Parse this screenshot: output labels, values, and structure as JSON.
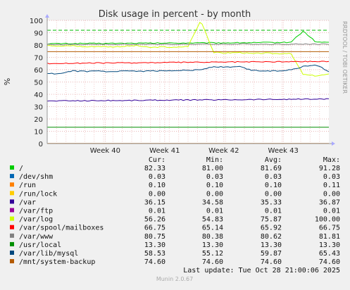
{
  "chart_data": {
    "type": "line",
    "title": "Disk usage in percent - by month",
    "ylabel": "%",
    "ylim": [
      0,
      100
    ],
    "yticks": [
      0,
      10,
      20,
      30,
      40,
      50,
      60,
      70,
      80,
      90,
      100
    ],
    "x_ticks": [
      "Week 40",
      "Week 41",
      "Week 42",
      "Week 43"
    ],
    "grid": true,
    "warning_line": 92,
    "side_label": "RRDTOOL / TOBI OETIKER",
    "legend_headers": [
      "Cur:",
      "Min:",
      "Avg:",
      "Max:"
    ],
    "series": [
      {
        "name": "/",
        "color": "#00cc00",
        "cur": "82.33",
        "min": "81.00",
        "avg": "81.69",
        "max": "91.28",
        "values": [
          81.0,
          81.2,
          81.2,
          81.3,
          81.3,
          81.4,
          81.4,
          81.5,
          81.5,
          81.6,
          81.6,
          81.7,
          81.7,
          81.8,
          81.8,
          81.9,
          81.9,
          82.0,
          82.1,
          82.2,
          91.28,
          82.3,
          82.33
        ]
      },
      {
        "name": "/dev/shm",
        "color": "#0066b3",
        "cur": "0.03",
        "min": "0.03",
        "avg": "0.03",
        "max": "0.03",
        "values": [
          0.03,
          0.03,
          0.03,
          0.03,
          0.03,
          0.03,
          0.03,
          0.03,
          0.03,
          0.03,
          0.03,
          0.03,
          0.03,
          0.03,
          0.03,
          0.03,
          0.03,
          0.03,
          0.03,
          0.03,
          0.03,
          0.03,
          0.03
        ]
      },
      {
        "name": "/run",
        "color": "#ff8000",
        "cur": "0.10",
        "min": "0.10",
        "avg": "0.10",
        "max": "0.11",
        "values": [
          0.1,
          0.1,
          0.1,
          0.1,
          0.1,
          0.1,
          0.1,
          0.1,
          0.1,
          0.1,
          0.1,
          0.1,
          0.1,
          0.1,
          0.1,
          0.1,
          0.1,
          0.1,
          0.1,
          0.1,
          0.1,
          0.1,
          0.1
        ]
      },
      {
        "name": "/run/lock",
        "color": "#ffcc00",
        "cur": "0.00",
        "min": "0.00",
        "avg": "0.00",
        "max": "0.00",
        "values": [
          0,
          0,
          0,
          0,
          0,
          0,
          0,
          0,
          0,
          0,
          0,
          0,
          0,
          0,
          0,
          0,
          0,
          0,
          0,
          0,
          0,
          0,
          0
        ]
      },
      {
        "name": "/var",
        "color": "#330099",
        "cur": "36.15",
        "min": "34.58",
        "avg": "35.33",
        "max": "36.87",
        "values": [
          34.6,
          34.7,
          34.8,
          34.8,
          34.9,
          35.0,
          35.0,
          35.1,
          35.2,
          35.3,
          35.3,
          35.4,
          35.5,
          35.5,
          35.6,
          35.7,
          35.8,
          35.9,
          35.9,
          36.0,
          36.1,
          36.1,
          36.15
        ]
      },
      {
        "name": "/var/ftp",
        "color": "#990099",
        "cur": "0.01",
        "min": "0.01",
        "avg": "0.01",
        "max": "0.01",
        "values": [
          0.01,
          0.01,
          0.01,
          0.01,
          0.01,
          0.01,
          0.01,
          0.01,
          0.01,
          0.01,
          0.01,
          0.01,
          0.01,
          0.01,
          0.01,
          0.01,
          0.01,
          0.01,
          0.01,
          0.01,
          0.01,
          0.01,
          0.01
        ]
      },
      {
        "name": "/var/log",
        "color": "#ccff00",
        "cur": "56.26",
        "min": "54.83",
        "avg": "75.87",
        "max": "100.00",
        "values": [
          80,
          79,
          79.5,
          78.5,
          79,
          78.5,
          79,
          79.5,
          78,
          78.5,
          78,
          79,
          100,
          74,
          73.5,
          74,
          73,
          73.5,
          73,
          73.5,
          56,
          55,
          56.26
        ]
      },
      {
        "name": "/var/spool/mailboxes",
        "color": "#ff0000",
        "cur": "66.75",
        "min": "65.14",
        "avg": "65.92",
        "max": "66.75",
        "values": [
          65.1,
          65.1,
          65.2,
          65.3,
          65.4,
          65.5,
          65.5,
          65.6,
          65.7,
          65.8,
          65.9,
          66.0,
          66.0,
          66.1,
          66.2,
          66.3,
          66.3,
          66.4,
          66.5,
          66.5,
          66.6,
          66.7,
          66.75
        ]
      },
      {
        "name": "/var/www",
        "color": "#808080",
        "cur": "80.75",
        "min": "80.38",
        "avg": "80.62",
        "max": "81.81",
        "values": [
          80.4,
          80.4,
          80.4,
          80.5,
          80.5,
          80.5,
          80.6,
          80.6,
          80.6,
          80.7,
          80.7,
          80.7,
          80.7,
          80.7,
          80.7,
          80.8,
          80.8,
          80.7,
          80.7,
          80.7,
          80.8,
          80.8,
          80.75
        ]
      },
      {
        "name": "/usr/local",
        "color": "#008f00",
        "cur": "13.30",
        "min": "13.30",
        "avg": "13.30",
        "max": "13.30",
        "values": [
          13.3,
          13.3,
          13.3,
          13.3,
          13.3,
          13.3,
          13.3,
          13.3,
          13.3,
          13.3,
          13.3,
          13.3,
          13.3,
          13.3,
          13.3,
          13.3,
          13.3,
          13.3,
          13.3,
          13.3,
          13.3,
          13.3,
          13.3
        ]
      },
      {
        "name": "/var/lib/mysql",
        "color": "#00487d",
        "cur": "58.53",
        "min": "55.12",
        "avg": "59.87",
        "max": "65.43",
        "values": [
          57.0,
          56.5,
          59.0,
          58.5,
          59.0,
          58.0,
          59.0,
          58.5,
          59.0,
          59.0,
          59.5,
          59.5,
          60.0,
          62.5,
          62.0,
          62.5,
          59.5,
          59.0,
          59.0,
          60.0,
          62.5,
          64.0,
          58.53
        ]
      },
      {
        "name": "/mnt/system-backup",
        "color": "#b35a00",
        "cur": "74.60",
        "min": "74.60",
        "avg": "74.60",
        "max": "74.60",
        "values": [
          74.6,
          74.6,
          74.6,
          74.6,
          74.6,
          74.6,
          74.6,
          74.6,
          74.6,
          74.6,
          74.6,
          74.6,
          74.6,
          74.6,
          74.6,
          74.6,
          74.6,
          74.6,
          74.6,
          74.6,
          74.6,
          74.6,
          74.6
        ]
      }
    ],
    "last_update": "Last update:  Tue Oct 28 21:00:06 2025",
    "footer": "Munin 2.0.67"
  }
}
